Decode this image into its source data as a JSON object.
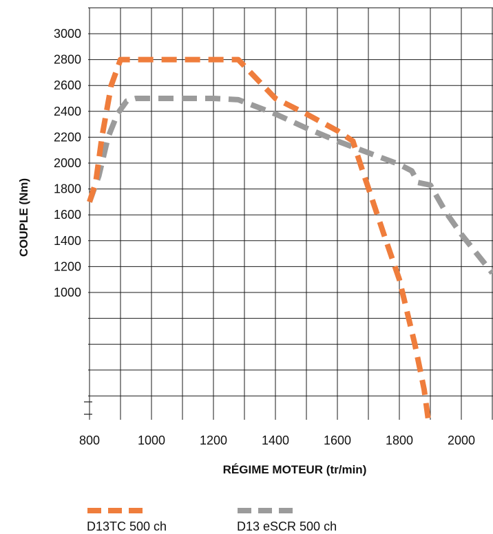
{
  "chart_data": {
    "type": "line",
    "title": "",
    "xlabel": "RÉGIME MOTEUR (tr/min)",
    "ylabel": "COUPLE (Nm)",
    "xlim": [
      800,
      2100
    ],
    "ylim": [
      0,
      3200
    ],
    "x_ticks": [
      800,
      1000,
      1200,
      1400,
      1600,
      1800,
      2000
    ],
    "y_ticks": [
      1000,
      1200,
      1400,
      1600,
      1800,
      2000,
      2200,
      2400,
      2600,
      2800,
      3000
    ],
    "grid": true,
    "legend_position": "bottom-left",
    "series": [
      {
        "name": "D13TC 500 ch",
        "color": "#ef7d3c",
        "x": [
          800,
          820,
          840,
          870,
          900,
          1000,
          1100,
          1200,
          1280,
          1300,
          1400,
          1500,
          1600,
          1650,
          1680,
          1750,
          1800,
          1850,
          1880,
          1900,
          1920
        ],
        "y": [
          1700,
          1850,
          2200,
          2600,
          2800,
          2800,
          2800,
          2800,
          2800,
          2750,
          2500,
          2380,
          2250,
          2170,
          1950,
          1450,
          1100,
          600,
          250,
          -100,
          -500
        ]
      },
      {
        "name": "D13 eSCR 500 ch",
        "color": "#9b9b9b",
        "x": [
          800,
          830,
          860,
          890,
          920,
          950,
          1000,
          1100,
          1200,
          1280,
          1400,
          1500,
          1600,
          1700,
          1800,
          1840,
          1860,
          1900,
          1950,
          2000,
          2100
        ],
        "y": [
          1700,
          1900,
          2200,
          2380,
          2480,
          2500,
          2500,
          2500,
          2500,
          2490,
          2380,
          2270,
          2170,
          2080,
          1990,
          1940,
          1850,
          1830,
          1620,
          1450,
          1150
        ]
      }
    ]
  }
}
